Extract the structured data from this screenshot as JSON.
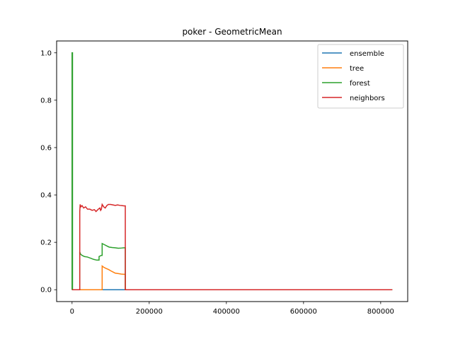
{
  "chart_data": {
    "type": "line",
    "title": "poker - GeometricMean",
    "xlabel": "",
    "ylabel": "",
    "xlim": [
      -40000,
      870000
    ],
    "ylim": [
      -0.05,
      1.05
    ],
    "xticks": [
      0,
      200000,
      400000,
      600000,
      800000
    ],
    "xtick_labels": [
      "0",
      "200000",
      "400000",
      "600000",
      "800000"
    ],
    "yticks": [
      0.0,
      0.2,
      0.4,
      0.6,
      0.8,
      1.0
    ],
    "ytick_labels": [
      "0.0",
      "0.2",
      "0.4",
      "0.6",
      "0.8",
      "1.0"
    ],
    "grid": false,
    "legend_position": "upper right",
    "series": [
      {
        "name": "ensemble",
        "color": "#1f77b4",
        "points": [
          [
            0,
            0
          ],
          [
            830000,
            0
          ]
        ]
      },
      {
        "name": "tree",
        "color": "#ff7f0e",
        "points": [
          [
            0,
            0
          ],
          [
            78000,
            0
          ],
          [
            78000,
            0.1
          ],
          [
            82000,
            0.095
          ],
          [
            88000,
            0.09
          ],
          [
            95000,
            0.085
          ],
          [
            100000,
            0.08
          ],
          [
            106000,
            0.075
          ],
          [
            112000,
            0.07
          ],
          [
            120000,
            0.068
          ],
          [
            128000,
            0.066
          ],
          [
            135000,
            0.065
          ],
          [
            138000,
            0.065
          ],
          [
            138000,
            0
          ],
          [
            830000,
            0
          ]
        ]
      },
      {
        "name": "forest",
        "color": "#2ca02c",
        "points": [
          [
            0,
            0
          ],
          [
            0,
            1.0
          ],
          [
            1200,
            1.0
          ],
          [
            1200,
            0
          ],
          [
            20000,
            0
          ],
          [
            20000,
            0.16
          ],
          [
            22000,
            0.15
          ],
          [
            26000,
            0.145
          ],
          [
            32000,
            0.14
          ],
          [
            40000,
            0.138
          ],
          [
            48000,
            0.133
          ],
          [
            56000,
            0.128
          ],
          [
            64000,
            0.125
          ],
          [
            70000,
            0.125
          ],
          [
            70000,
            0.14
          ],
          [
            76000,
            0.145
          ],
          [
            78000,
            0.145
          ],
          [
            78000,
            0.195
          ],
          [
            84000,
            0.19
          ],
          [
            90000,
            0.185
          ],
          [
            96000,
            0.18
          ],
          [
            104000,
            0.178
          ],
          [
            112000,
            0.177
          ],
          [
            120000,
            0.175
          ],
          [
            128000,
            0.176
          ],
          [
            134000,
            0.177
          ],
          [
            138000,
            0.177
          ],
          [
            138000,
            0
          ],
          [
            830000,
            0
          ]
        ]
      },
      {
        "name": "neighbors",
        "color": "#d62728",
        "points": [
          [
            0,
            0
          ],
          [
            20000,
            0
          ],
          [
            20000,
            0.33
          ],
          [
            21000,
            0.36
          ],
          [
            23000,
            0.35
          ],
          [
            26000,
            0.355
          ],
          [
            30000,
            0.345
          ],
          [
            35000,
            0.35
          ],
          [
            40000,
            0.34
          ],
          [
            46000,
            0.34
          ],
          [
            52000,
            0.335
          ],
          [
            58000,
            0.338
          ],
          [
            62000,
            0.33
          ],
          [
            68000,
            0.34
          ],
          [
            72000,
            0.345
          ],
          [
            74000,
            0.335
          ],
          [
            76000,
            0.34
          ],
          [
            78000,
            0.36
          ],
          [
            82000,
            0.35
          ],
          [
            86000,
            0.345
          ],
          [
            90000,
            0.355
          ],
          [
            94000,
            0.36
          ],
          [
            100000,
            0.36
          ],
          [
            106000,
            0.358
          ],
          [
            112000,
            0.356
          ],
          [
            118000,
            0.358
          ],
          [
            124000,
            0.356
          ],
          [
            130000,
            0.355
          ],
          [
            134000,
            0.354
          ],
          [
            138000,
            0.354
          ],
          [
            138000,
            0
          ],
          [
            830000,
            0
          ]
        ]
      }
    ]
  }
}
